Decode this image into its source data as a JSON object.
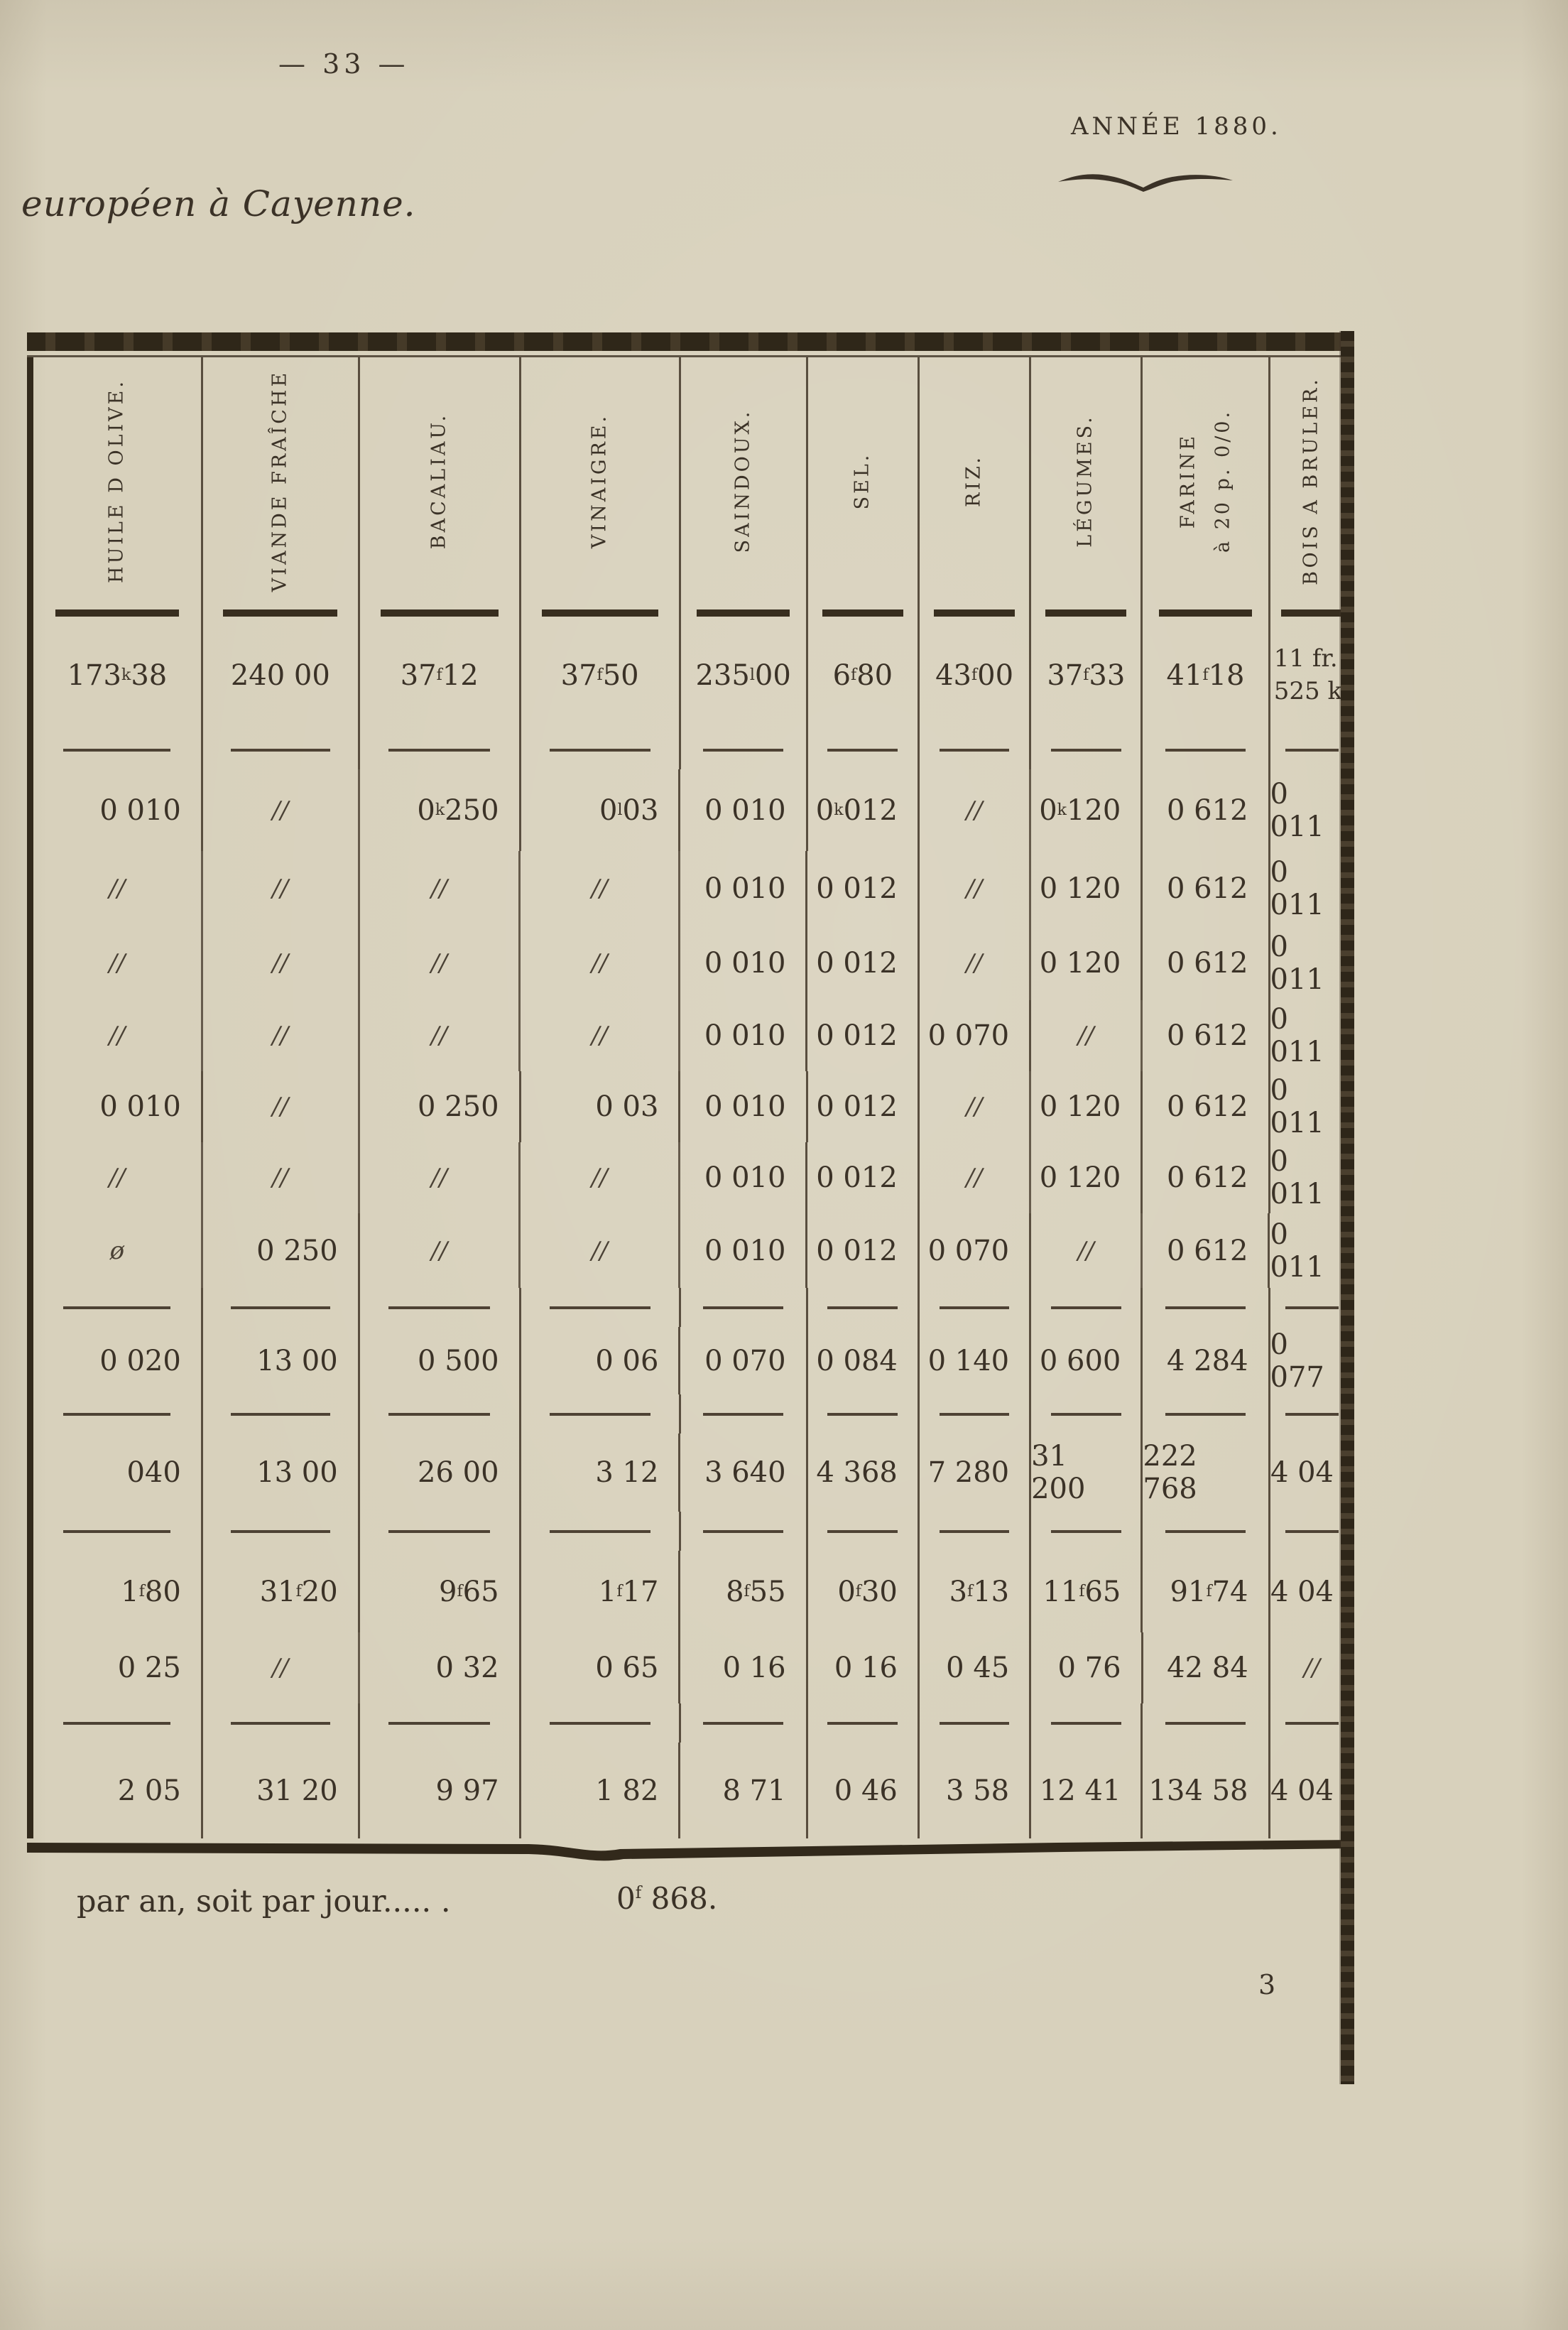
{
  "page": {
    "page_number": "— 33 —",
    "year_heading": "ANNÉE 1880.",
    "subtitle": "européen à Cayenne.",
    "footer_label": "par an, soit par jour..... .",
    "footer_value": "0^f 868.",
    "signature_number": "3",
    "colors": {
      "paper": "#d8d1bc",
      "ink": "#3b3227"
    }
  },
  "table": {
    "column_headers": [
      [
        "HUILE D OLIVE."
      ],
      [
        "VIANDE FRAÎCHE"
      ],
      [
        "BACALIAU."
      ],
      [
        "VINAIGRE."
      ],
      [
        "SAINDOUX."
      ],
      [
        "SEL."
      ],
      [
        "RIZ."
      ],
      [
        "LÉGUMES."
      ],
      [
        "FARINE",
        "à 20 p. 0/0."
      ],
      [
        "BOIS A BRULER."
      ]
    ],
    "rows": [
      {
        "cells": [
          "173^k38",
          "240 00",
          "37^f 12",
          "37^f 50",
          "235^l 00",
          "6^f 80",
          "43^f 00",
          "37^f 33",
          "41^f 18",
          "11 fr.\n525 k."
        ],
        "separator_after": true,
        "style": "center"
      },
      {
        "cells": [
          "0 010",
          "//",
          "0^k250",
          "0^l 03",
          "0 010",
          "0^k012",
          "//",
          "0^k 120",
          "0 612",
          "0 011"
        ],
        "separator_after": false,
        "style": "num"
      },
      {
        "cells": [
          "//",
          "//",
          "//",
          "//",
          "0 010",
          "0 012",
          "//",
          "0 120",
          "0 612",
          "0 011"
        ],
        "separator_after": false,
        "style": "num"
      },
      {
        "cells": [
          "//",
          "//",
          "//",
          "//",
          "0 010",
          "0 012",
          "//",
          "0 120",
          "0 612",
          "0 011"
        ],
        "separator_after": false,
        "style": "num"
      },
      {
        "cells": [
          "//",
          "//",
          "//",
          "//",
          "0 010",
          "0 012",
          "0 070",
          "//",
          "0 612",
          "0 011"
        ],
        "separator_after": false,
        "style": "num"
      },
      {
        "cells": [
          "0 010",
          "//",
          "0 250",
          "0 03",
          "0 010",
          "0 012",
          "//",
          "0 120",
          "0 612",
          "0 011"
        ],
        "separator_after": false,
        "style": "num"
      },
      {
        "cells": [
          "//",
          "//",
          "//",
          "//",
          "0 010",
          "0 012",
          "//",
          "0 120",
          "0 612",
          "0 011"
        ],
        "separator_after": false,
        "style": "num"
      },
      {
        "cells": [
          "ø",
          "0 250",
          "//",
          "//",
          "0 010",
          "0 012",
          "0 070",
          "//",
          "0 612",
          "0 011"
        ],
        "separator_after": true,
        "style": "num"
      },
      {
        "cells": [
          "0 020",
          "13 00",
          "0 500",
          "0 06",
          "0 070",
          "0 084",
          "0 140",
          "0 600",
          "4 284",
          "0 077"
        ],
        "separator_after": true,
        "style": "num"
      },
      {
        "cells": [
          "040",
          "13 00",
          "26 00",
          "3 12",
          "3 640",
          "4 368",
          "7 280",
          "31 200",
          "222 768",
          "4 04"
        ],
        "separator_after": true,
        "style": "num"
      },
      {
        "cells": [
          "1^f 80",
          "31^f 20",
          "9^f 65",
          "1^f 17",
          "8^f 55",
          "0^f 30",
          "3^f 13",
          "11^f 65",
          "91^f 74",
          "4 04"
        ],
        "separator_after": false,
        "style": "num"
      },
      {
        "cells": [
          "0 25",
          "//",
          "0 32",
          "0 65",
          "0 16",
          "0 16",
          "0 45",
          "0 76",
          "42 84",
          "//"
        ],
        "separator_after": true,
        "style": "num"
      },
      {
        "cells": [
          "2 05",
          "31 20",
          "9 97",
          "1 82",
          "8 71",
          "0 46",
          "3 58",
          "12 41",
          "134 58",
          "4 04"
        ],
        "separator_after": false,
        "style": "num"
      }
    ]
  }
}
